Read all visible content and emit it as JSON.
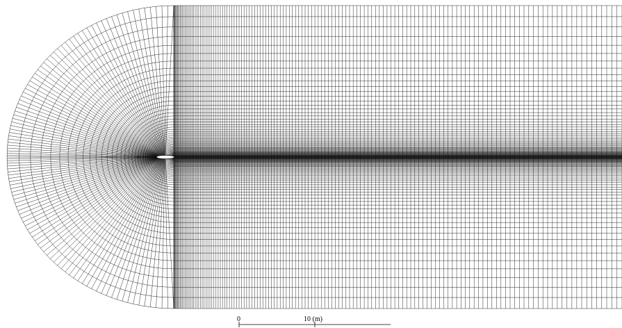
{
  "scale_bar": {
    "labels": [
      "0",
      "10 (m)"
    ]
  }
}
